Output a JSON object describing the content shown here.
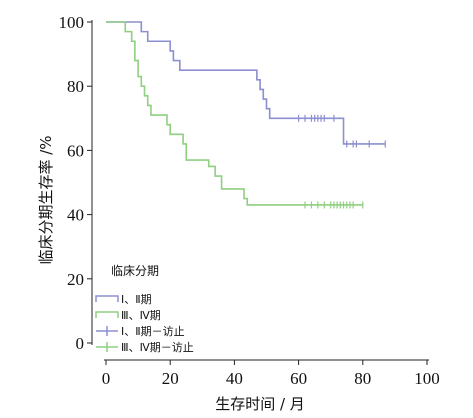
{
  "chart_data": {
    "type": "line",
    "subtype": "kaplan-meier",
    "title": "",
    "xlabel": "生存时间 / 月",
    "ylabel": "临床分期生存率 /%",
    "xlim": [
      0,
      100
    ],
    "ylim": [
      0,
      100
    ],
    "xticks": [
      0,
      20,
      40,
      60,
      80,
      100
    ],
    "yticks": [
      0,
      20,
      40,
      60,
      80,
      100
    ],
    "grid": false,
    "legend": {
      "title": "临床分期",
      "placement": "bottom-left",
      "entries": [
        "Ⅰ、Ⅱ期",
        "Ⅲ、Ⅳ期",
        "Ⅰ、Ⅱ期－访止",
        "Ⅲ、Ⅳ期－访止"
      ]
    },
    "series": [
      {
        "name": "Ⅰ、Ⅱ期",
        "color": "#8c8fd0",
        "x": [
          0,
          10,
          11,
          13,
          19,
          20,
          21,
          22,
          23,
          46,
          47,
          48,
          49,
          50,
          51,
          73,
          74,
          87
        ],
        "y": [
          100,
          100,
          97,
          94,
          94,
          91,
          88,
          88,
          85,
          85,
          82,
          79,
          76,
          73,
          70,
          70,
          62,
          62
        ],
        "censored": [
          {
            "x": 60,
            "y": 70
          },
          {
            "x": 62,
            "y": 70
          },
          {
            "x": 64,
            "y": 70
          },
          {
            "x": 65,
            "y": 70
          },
          {
            "x": 66,
            "y": 70
          },
          {
            "x": 67,
            "y": 70
          },
          {
            "x": 68,
            "y": 70
          },
          {
            "x": 71,
            "y": 70
          },
          {
            "x": 75,
            "y": 62
          },
          {
            "x": 77,
            "y": 62
          },
          {
            "x": 78,
            "y": 62
          },
          {
            "x": 82,
            "y": 62
          },
          {
            "x": 87,
            "y": 62
          }
        ]
      },
      {
        "name": "Ⅲ、Ⅳ期",
        "color": "#8fcf80",
        "x": [
          0,
          6,
          8,
          9,
          10,
          11,
          12,
          13,
          14,
          19,
          20,
          24,
          25,
          30,
          32,
          34,
          36,
          42,
          43,
          44,
          52,
          80
        ],
        "y": [
          100,
          97,
          94,
          88,
          83,
          80,
          77,
          74,
          71,
          68,
          65,
          62,
          57,
          57,
          55,
          52,
          48,
          48,
          45,
          43,
          43,
          43
        ],
        "censored": [
          {
            "x": 62,
            "y": 43
          },
          {
            "x": 64,
            "y": 43
          },
          {
            "x": 66,
            "y": 43
          },
          {
            "x": 68,
            "y": 43
          },
          {
            "x": 70,
            "y": 43
          },
          {
            "x": 71,
            "y": 43
          },
          {
            "x": 72,
            "y": 43
          },
          {
            "x": 73,
            "y": 43
          },
          {
            "x": 74,
            "y": 43
          },
          {
            "x": 75,
            "y": 43
          },
          {
            "x": 76,
            "y": 43
          },
          {
            "x": 77,
            "y": 43
          },
          {
            "x": 80,
            "y": 43
          }
        ]
      }
    ]
  }
}
